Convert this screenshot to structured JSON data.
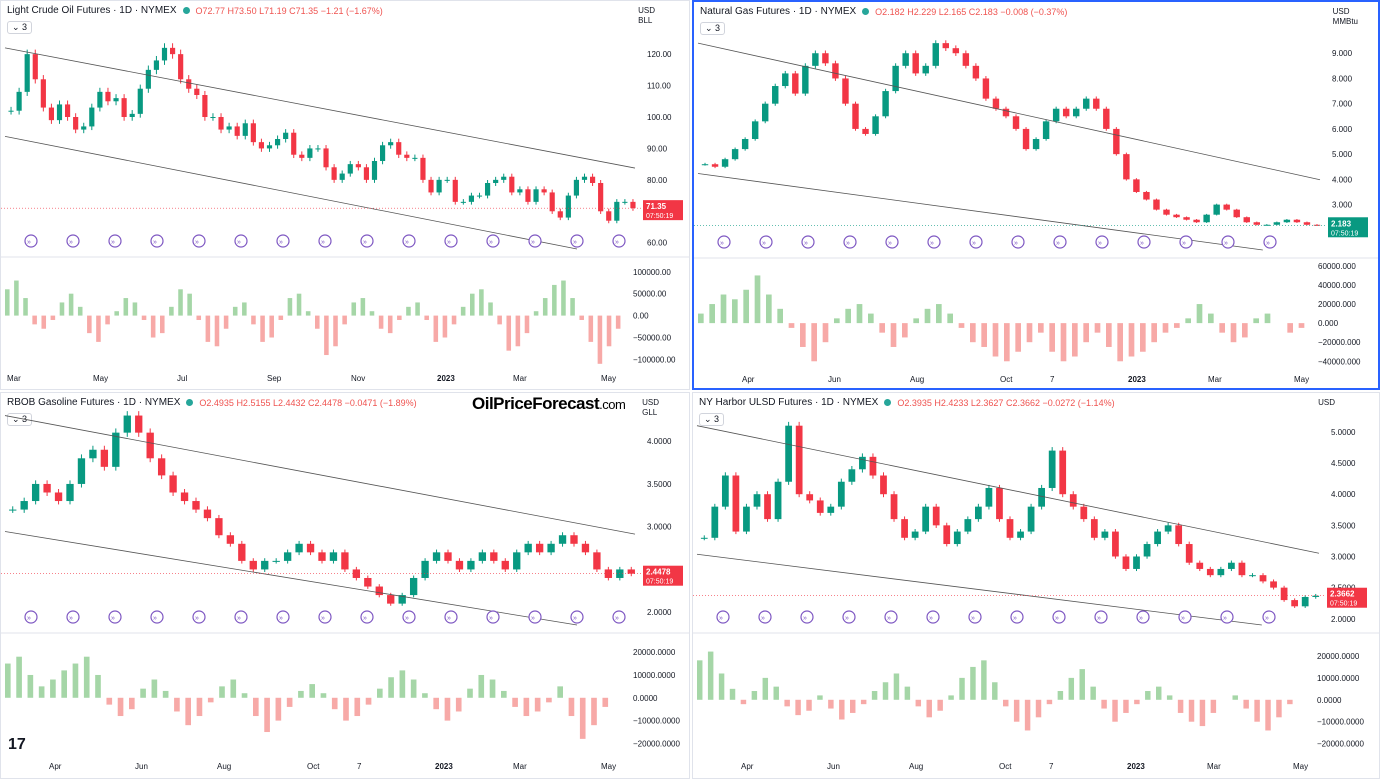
{
  "chart_data": [
    {
      "type": "candlestick",
      "title": "Light Crude Oil Futures · 1D · NYMEX",
      "ohlc_label": {
        "o": "O72.77",
        "h": "H73.50",
        "l": "L71.19",
        "c": "C71.35",
        "chg": "−1.21 (−1.67%)"
      },
      "currency": "USD",
      "unit": "BLL",
      "indicator_count": "3",
      "price_ticks": [
        "120.00",
        "110.00",
        "100.00",
        "90.00",
        "80.00",
        "70.00",
        "60.00"
      ],
      "price_range": [
        58,
        128
      ],
      "last_price": "71.35",
      "countdown": "07:50:19",
      "osc_ticks": [
        "100000.00",
        "50000.00",
        "0.00",
        "−50000.00",
        "−100000.00"
      ],
      "osc_range": [
        -115000,
        120000
      ],
      "time_labels": [
        "Mar",
        "May",
        "Jul",
        "Sep",
        "Nov",
        "2023",
        "Mar",
        "May"
      ],
      "x_range": [
        "2022-03",
        "2023-05"
      ],
      "closes": [
        102,
        108,
        120,
        112,
        103,
        99,
        104,
        100,
        96,
        97,
        103,
        108,
        105,
        106,
        100,
        101,
        109,
        115,
        118,
        122,
        120,
        112,
        109,
        107,
        100,
        100,
        96,
        97,
        94,
        98,
        92,
        90,
        91,
        93,
        95,
        88,
        87,
        90,
        90,
        84,
        80,
        82,
        85,
        84,
        80,
        86,
        91,
        92,
        88,
        87,
        87,
        80,
        76,
        80,
        80,
        73,
        73,
        75,
        75,
        79,
        80,
        81,
        76,
        77,
        73,
        77,
        76,
        70,
        68,
        75,
        80,
        81,
        79,
        70,
        67,
        73,
        73,
        71
      ],
      "oscillator": [
        60000,
        80000,
        40000,
        -20000,
        -30000,
        -10000,
        30000,
        50000,
        20000,
        -40000,
        -60000,
        -20000,
        10000,
        40000,
        30000,
        -10000,
        -50000,
        -40000,
        20000,
        60000,
        50000,
        -10000,
        -60000,
        -70000,
        -30000,
        20000,
        30000,
        -20000,
        -60000,
        -50000,
        -10000,
        40000,
        50000,
        10000,
        -30000,
        -90000,
        -70000,
        -20000,
        30000,
        40000,
        10000,
        -30000,
        -40000,
        -10000,
        20000,
        30000,
        -10000,
        -60000,
        -50000,
        -20000,
        20000,
        50000,
        60000,
        30000,
        -20000,
        -80000,
        -70000,
        -40000,
        10000,
        40000,
        70000,
        80000,
        40000,
        -10000,
        -60000,
        -110000,
        -70000,
        -30000
      ]
    },
    {
      "type": "candlestick",
      "title": "Natural Gas Futures · 1D · NYMEX",
      "ohlc_label": {
        "o": "O2.182",
        "h": "H2.229",
        "l": "L2.165",
        "c": "C2.183",
        "chg": "−0.008 (−0.37%)"
      },
      "currency": "USD",
      "unit": "MMBtu",
      "indicator_count": "3",
      "price_ticks": [
        "9.000",
        "8.000",
        "7.000",
        "6.000",
        "5.000",
        "4.000",
        "3.000",
        "2.000"
      ],
      "price_range": [
        1.2,
        10.0
      ],
      "last_price": "2.183",
      "countdown": "07:50:19",
      "osc_ticks": [
        "60000.000",
        "40000.000",
        "20000.000",
        "0.000",
        "−20000.000",
        "−40000.000"
      ],
      "osc_range": [
        -46000,
        62000
      ],
      "time_labels": [
        "Apr",
        "Jun",
        "Aug",
        "Oct",
        "7",
        "2023",
        "Mar",
        "May"
      ],
      "x_range": [
        "2022-03",
        "2023-05"
      ],
      "closes": [
        4.6,
        4.5,
        4.8,
        5.2,
        5.6,
        6.3,
        7.0,
        7.7,
        8.2,
        7.4,
        8.5,
        9.0,
        8.6,
        8.0,
        7.0,
        6.0,
        5.8,
        6.5,
        7.5,
        8.5,
        9.0,
        8.2,
        8.5,
        9.4,
        9.2,
        9.0,
        8.5,
        8.0,
        7.2,
        6.8,
        6.5,
        6.0,
        5.2,
        5.6,
        6.3,
        6.8,
        6.5,
        6.8,
        7.2,
        6.8,
        6.0,
        5.0,
        4.0,
        3.5,
        3.2,
        2.8,
        2.6,
        2.5,
        2.4,
        2.3,
        2.6,
        3.0,
        2.8,
        2.5,
        2.3,
        2.2,
        2.2,
        2.3,
        2.4,
        2.3,
        2.2,
        2.18
      ],
      "oscillator": [
        10000,
        20000,
        30000,
        25000,
        35000,
        50000,
        30000,
        15000,
        -5000,
        -25000,
        -40000,
        -20000,
        5000,
        15000,
        20000,
        10000,
        -10000,
        -25000,
        -15000,
        5000,
        15000,
        20000,
        10000,
        -5000,
        -20000,
        -25000,
        -35000,
        -40000,
        -30000,
        -20000,
        -10000,
        -30000,
        -40000,
        -35000,
        -20000,
        -10000,
        -25000,
        -40000,
        -35000,
        -30000,
        -20000,
        -10000,
        -5000,
        5000,
        20000,
        10000,
        -10000,
        -20000,
        -15000,
        5000,
        10000,
        0,
        -10000,
        -5000
      ]
    },
    {
      "type": "candlestick",
      "title": "RBOB Gasoline Futures · 1D · NYMEX",
      "ohlc_label": {
        "o": "O2.4935",
        "h": "H2.5155",
        "l": "L2.4432",
        "c": "C2.4478",
        "chg": "−0.0471 (−1.89%)"
      },
      "currency": "USD",
      "unit": "GLL",
      "indicator_count": "3",
      "price_ticks": [
        "4.0000",
        "3.5000",
        "3.0000",
        "2.5000",
        "2.0000"
      ],
      "price_range": [
        1.85,
        4.4
      ],
      "last_price": "2.4478",
      "countdown": "07:50:19",
      "osc_ticks": [
        "20000.0000",
        "10000.0000",
        "0.0000",
        "−10000.0000",
        "−20000.0000"
      ],
      "osc_range": [
        -22000,
        24000
      ],
      "time_labels": [
        "Apr",
        "Jun",
        "Aug",
        "Oct",
        "7",
        "2023",
        "Mar",
        "May"
      ],
      "x_range": [
        "2022-03",
        "2023-05"
      ],
      "closes": [
        3.2,
        3.3,
        3.5,
        3.4,
        3.3,
        3.5,
        3.8,
        3.9,
        3.7,
        4.1,
        4.3,
        4.1,
        3.8,
        3.6,
        3.4,
        3.3,
        3.2,
        3.1,
        2.9,
        2.8,
        2.6,
        2.5,
        2.6,
        2.6,
        2.7,
        2.8,
        2.7,
        2.6,
        2.7,
        2.5,
        2.4,
        2.3,
        2.2,
        2.1,
        2.2,
        2.4,
        2.6,
        2.7,
        2.6,
        2.5,
        2.6,
        2.7,
        2.6,
        2.5,
        2.7,
        2.8,
        2.7,
        2.8,
        2.9,
        2.8,
        2.7,
        2.5,
        2.4,
        2.5,
        2.45
      ],
      "oscillator": [
        15000,
        18000,
        10000,
        5000,
        8000,
        12000,
        15000,
        18000,
        10000,
        -3000,
        -8000,
        -5000,
        4000,
        8000,
        3000,
        -6000,
        -12000,
        -8000,
        -2000,
        5000,
        8000,
        2000,
        -8000,
        -15000,
        -10000,
        -4000,
        3000,
        6000,
        2000,
        -5000,
        -10000,
        -8000,
        -3000,
        4000,
        9000,
        12000,
        8000,
        2000,
        -5000,
        -10000,
        -6000,
        4000,
        10000,
        8000,
        3000,
        -4000,
        -8000,
        -6000,
        -2000,
        5000,
        -8000,
        -18000,
        -12000,
        -4000,
        0
      ]
    },
    {
      "type": "candlestick",
      "title": "NY Harbor ULSD Futures · 1D · NYMEX",
      "ohlc_label": {
        "o": "O2.3935",
        "h": "H2.4233",
        "l": "L2.3627",
        "c": "C2.3662",
        "chg": "−0.0272 (−1.14%)"
      },
      "currency": "USD",
      "unit": "",
      "indicator_count": "3",
      "price_ticks": [
        "5.0000",
        "4.5000",
        "4.0000",
        "3.5000",
        "3.0000",
        "2.5000",
        "2.0000"
      ],
      "price_range": [
        1.9,
        5.4
      ],
      "last_price": "2.3662",
      "countdown": "07:50:19",
      "osc_ticks": [
        "20000.0000",
        "10000.0000",
        "0.0000",
        "−10000.0000",
        "−20000.0000"
      ],
      "osc_range": [
        -22000,
        25000
      ],
      "time_labels": [
        "Apr",
        "Jun",
        "Aug",
        "Oct",
        "7",
        "2023",
        "Mar",
        "May"
      ],
      "x_range": [
        "2022-03",
        "2023-05"
      ],
      "closes": [
        3.3,
        3.8,
        4.3,
        3.4,
        3.8,
        4.0,
        3.6,
        4.2,
        5.1,
        4.0,
        3.9,
        3.7,
        3.8,
        4.2,
        4.4,
        4.6,
        4.3,
        4.0,
        3.6,
        3.3,
        3.4,
        3.8,
        3.5,
        3.2,
        3.4,
        3.6,
        3.8,
        4.1,
        3.6,
        3.3,
        3.4,
        3.8,
        4.1,
        4.7,
        4.0,
        3.8,
        3.6,
        3.3,
        3.4,
        3.0,
        2.8,
        3.0,
        3.2,
        3.4,
        3.5,
        3.2,
        2.9,
        2.8,
        2.7,
        2.8,
        2.9,
        2.7,
        2.7,
        2.6,
        2.5,
        2.3,
        2.2,
        2.35,
        2.37
      ],
      "oscillator": [
        18000,
        22000,
        12000,
        5000,
        -2000,
        4000,
        10000,
        6000,
        -3000,
        -7000,
        -5000,
        2000,
        -4000,
        -9000,
        -6000,
        -2000,
        4000,
        8000,
        12000,
        6000,
        -3000,
        -8000,
        -5000,
        2000,
        10000,
        15000,
        18000,
        8000,
        -3000,
        -10000,
        -14000,
        -8000,
        -2000,
        4000,
        10000,
        14000,
        6000,
        -4000,
        -10000,
        -6000,
        -2000,
        4000,
        6000,
        2000,
        -6000,
        -10000,
        -12000,
        -6000,
        0,
        2000,
        -4000,
        -10000,
        -14000,
        -8000,
        -2000,
        0
      ]
    }
  ],
  "branding": {
    "site": "OilPriceForecast",
    "tld": ".com",
    "tv": "17"
  }
}
